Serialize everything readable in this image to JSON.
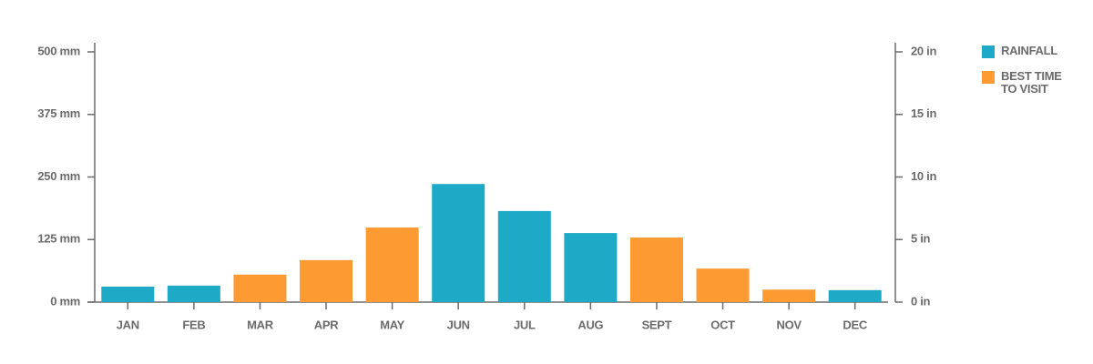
{
  "chart_data": {
    "type": "bar",
    "categories": [
      "JAN",
      "FEB",
      "MAR",
      "APR",
      "MAY",
      "JUN",
      "JUL",
      "AUG",
      "SEPT",
      "OCT",
      "NOV",
      "DEC"
    ],
    "series": [
      {
        "name": "RAINFALL",
        "color": "#1eaac6",
        "values": [
          31,
          33,
          null,
          null,
          null,
          236,
          182,
          138,
          null,
          null,
          null,
          24
        ]
      },
      {
        "name": "BEST TIME TO VISIT",
        "color": "#fd9a32",
        "values": [
          null,
          null,
          55,
          84,
          149,
          null,
          null,
          null,
          129,
          67,
          25,
          null
        ]
      }
    ],
    "ylim": [
      0,
      500
    ],
    "yticks": [
      {
        "value": 0,
        "label": "0 mm"
      },
      {
        "value": 125,
        "label": "125 mm"
      },
      {
        "value": 250,
        "label": "250 mm"
      },
      {
        "value": 375,
        "label": "375 mm"
      },
      {
        "value": 500,
        "label": "500 mm"
      }
    ],
    "y2lim": [
      0,
      20
    ],
    "y2ticks": [
      {
        "value": 0,
        "label": "0 in"
      },
      {
        "value": 5,
        "label": "5 in"
      },
      {
        "value": 10,
        "label": "10 in"
      },
      {
        "value": 15,
        "label": "15 in"
      },
      {
        "value": 20,
        "label": "20 in"
      }
    ]
  }
}
